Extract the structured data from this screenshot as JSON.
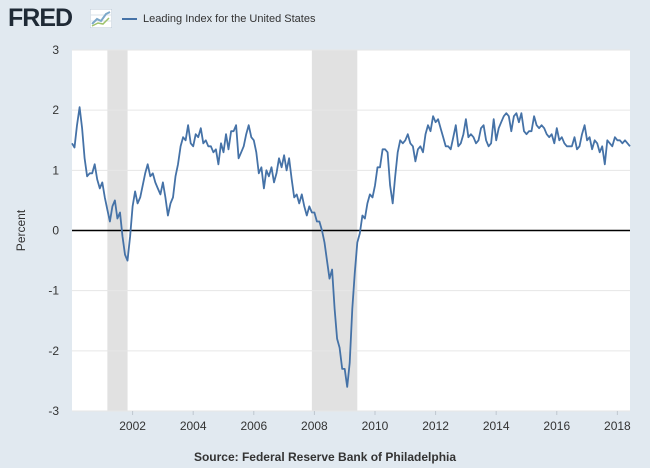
{
  "header": {
    "logo_text": "FRED",
    "logo_icon": "trend-graph-icon",
    "legend_color": "#4572a7"
  },
  "footer": {
    "source": "Source: Federal Reserve Bank of Philadelphia"
  },
  "chart_data": {
    "type": "line",
    "title": "",
    "xlabel": "",
    "ylabel": "Percent",
    "xlim": [
      "2000-01",
      "2018-06"
    ],
    "ylim": [
      -3,
      3
    ],
    "y_ticks": [
      "-3",
      "-2",
      "-1",
      "0",
      "1",
      "2",
      "3"
    ],
    "x_ticks": [
      "2002",
      "2004",
      "2006",
      "2008",
      "2010",
      "2012",
      "2014",
      "2016",
      "2018"
    ],
    "grid": true,
    "legend": "top-left",
    "zero_line": true,
    "recessions": [
      {
        "start": "2001-03",
        "end": "2001-11"
      },
      {
        "start": "2007-12",
        "end": "2009-06"
      }
    ],
    "series": [
      {
        "name": "Leading Index for the United States",
        "color": "#4572a7",
        "points": [
          [
            "2000-01",
            1.45
          ],
          [
            "2000-02",
            1.38
          ],
          [
            "2000-03",
            1.75
          ],
          [
            "2000-04",
            2.05
          ],
          [
            "2000-05",
            1.7
          ],
          [
            "2000-06",
            1.2
          ],
          [
            "2000-07",
            0.9
          ],
          [
            "2000-08",
            0.95
          ],
          [
            "2000-09",
            0.95
          ],
          [
            "2000-10",
            1.1
          ],
          [
            "2000-11",
            0.85
          ],
          [
            "2000-12",
            0.7
          ],
          [
            "2001-01",
            0.8
          ],
          [
            "2001-02",
            0.55
          ],
          [
            "2001-03",
            0.35
          ],
          [
            "2001-04",
            0.15
          ],
          [
            "2001-05",
            0.4
          ],
          [
            "2001-06",
            0.5
          ],
          [
            "2001-07",
            0.2
          ],
          [
            "2001-08",
            0.3
          ],
          [
            "2001-09",
            -0.1
          ],
          [
            "2001-10",
            -0.4
          ],
          [
            "2001-11",
            -0.5
          ],
          [
            "2001-12",
            -0.1
          ],
          [
            "2002-01",
            0.4
          ],
          [
            "2002-02",
            0.65
          ],
          [
            "2002-03",
            0.45
          ],
          [
            "2002-04",
            0.55
          ],
          [
            "2002-05",
            0.75
          ],
          [
            "2002-06",
            0.95
          ],
          [
            "2002-07",
            1.1
          ],
          [
            "2002-08",
            0.9
          ],
          [
            "2002-09",
            0.95
          ],
          [
            "2002-10",
            0.8
          ],
          [
            "2002-11",
            0.7
          ],
          [
            "2002-12",
            0.6
          ],
          [
            "2003-01",
            0.8
          ],
          [
            "2003-02",
            0.55
          ],
          [
            "2003-03",
            0.25
          ],
          [
            "2003-04",
            0.45
          ],
          [
            "2003-05",
            0.55
          ],
          [
            "2003-06",
            0.9
          ],
          [
            "2003-07",
            1.1
          ],
          [
            "2003-08",
            1.4
          ],
          [
            "2003-09",
            1.55
          ],
          [
            "2003-10",
            1.5
          ],
          [
            "2003-11",
            1.75
          ],
          [
            "2003-12",
            1.45
          ],
          [
            "2004-01",
            1.4
          ],
          [
            "2004-02",
            1.6
          ],
          [
            "2004-03",
            1.55
          ],
          [
            "2004-04",
            1.7
          ],
          [
            "2004-05",
            1.45
          ],
          [
            "2004-06",
            1.5
          ],
          [
            "2004-07",
            1.4
          ],
          [
            "2004-08",
            1.4
          ],
          [
            "2004-09",
            1.3
          ],
          [
            "2004-10",
            1.35
          ],
          [
            "2004-11",
            1.1
          ],
          [
            "2004-12",
            1.45
          ],
          [
            "2005-01",
            1.3
          ],
          [
            "2005-02",
            1.6
          ],
          [
            "2005-03",
            1.35
          ],
          [
            "2005-04",
            1.65
          ],
          [
            "2005-05",
            1.65
          ],
          [
            "2005-06",
            1.75
          ],
          [
            "2005-07",
            1.2
          ],
          [
            "2005-08",
            1.3
          ],
          [
            "2005-09",
            1.4
          ],
          [
            "2005-10",
            1.6
          ],
          [
            "2005-11",
            1.75
          ],
          [
            "2005-12",
            1.55
          ],
          [
            "2006-01",
            1.5
          ],
          [
            "2006-02",
            1.3
          ],
          [
            "2006-03",
            0.95
          ],
          [
            "2006-04",
            1.05
          ],
          [
            "2006-05",
            0.7
          ],
          [
            "2006-06",
            1.0
          ],
          [
            "2006-07",
            0.9
          ],
          [
            "2006-08",
            1.05
          ],
          [
            "2006-09",
            0.8
          ],
          [
            "2006-10",
            0.95
          ],
          [
            "2006-11",
            1.2
          ],
          [
            "2006-12",
            1.05
          ],
          [
            "2007-01",
            1.25
          ],
          [
            "2007-02",
            1.0
          ],
          [
            "2007-03",
            1.2
          ],
          [
            "2007-04",
            0.85
          ],
          [
            "2007-05",
            0.55
          ],
          [
            "2007-06",
            0.6
          ],
          [
            "2007-07",
            0.45
          ],
          [
            "2007-08",
            0.6
          ],
          [
            "2007-09",
            0.4
          ],
          [
            "2007-10",
            0.25
          ],
          [
            "2007-11",
            0.4
          ],
          [
            "2007-12",
            0.3
          ],
          [
            "2008-01",
            0.3
          ],
          [
            "2008-02",
            0.15
          ],
          [
            "2008-03",
            0.15
          ],
          [
            "2008-04",
            0.0
          ],
          [
            "2008-05",
            -0.2
          ],
          [
            "2008-06",
            -0.5
          ],
          [
            "2008-07",
            -0.8
          ],
          [
            "2008-08",
            -0.65
          ],
          [
            "2008-09",
            -1.3
          ],
          [
            "2008-10",
            -1.8
          ],
          [
            "2008-11",
            -1.95
          ],
          [
            "2008-12",
            -2.3
          ],
          [
            "2009-01",
            -2.3
          ],
          [
            "2009-02",
            -2.6
          ],
          [
            "2009-03",
            -2.2
          ],
          [
            "2009-04",
            -1.3
          ],
          [
            "2009-05",
            -0.7
          ],
          [
            "2009-06",
            -0.2
          ],
          [
            "2009-07",
            -0.05
          ],
          [
            "2009-08",
            0.25
          ],
          [
            "2009-09",
            0.2
          ],
          [
            "2009-10",
            0.45
          ],
          [
            "2009-11",
            0.6
          ],
          [
            "2009-12",
            0.55
          ],
          [
            "2010-01",
            0.75
          ],
          [
            "2010-02",
            1.05
          ],
          [
            "2010-03",
            1.05
          ],
          [
            "2010-04",
            1.35
          ],
          [
            "2010-05",
            1.35
          ],
          [
            "2010-06",
            1.3
          ],
          [
            "2010-07",
            0.75
          ],
          [
            "2010-08",
            0.45
          ],
          [
            "2010-09",
            0.9
          ],
          [
            "2010-10",
            1.3
          ],
          [
            "2010-11",
            1.5
          ],
          [
            "2010-12",
            1.45
          ],
          [
            "2011-01",
            1.5
          ],
          [
            "2011-02",
            1.6
          ],
          [
            "2011-03",
            1.45
          ],
          [
            "2011-04",
            1.4
          ],
          [
            "2011-05",
            1.15
          ],
          [
            "2011-06",
            1.35
          ],
          [
            "2011-07",
            1.4
          ],
          [
            "2011-08",
            1.3
          ],
          [
            "2011-09",
            1.6
          ],
          [
            "2011-10",
            1.75
          ],
          [
            "2011-11",
            1.65
          ],
          [
            "2011-12",
            1.9
          ],
          [
            "2012-01",
            1.8
          ],
          [
            "2012-02",
            1.85
          ],
          [
            "2012-03",
            1.7
          ],
          [
            "2012-04",
            1.55
          ],
          [
            "2012-05",
            1.4
          ],
          [
            "2012-06",
            1.4
          ],
          [
            "2012-07",
            1.35
          ],
          [
            "2012-08",
            1.55
          ],
          [
            "2012-09",
            1.75
          ],
          [
            "2012-10",
            1.4
          ],
          [
            "2012-11",
            1.45
          ],
          [
            "2012-12",
            1.6
          ],
          [
            "2013-01",
            1.85
          ],
          [
            "2013-02",
            1.55
          ],
          [
            "2013-03",
            1.6
          ],
          [
            "2013-04",
            1.55
          ],
          [
            "2013-05",
            1.45
          ],
          [
            "2013-06",
            1.5
          ],
          [
            "2013-07",
            1.7
          ],
          [
            "2013-08",
            1.75
          ],
          [
            "2013-09",
            1.5
          ],
          [
            "2013-10",
            1.4
          ],
          [
            "2013-11",
            1.45
          ],
          [
            "2013-12",
            1.85
          ],
          [
            "2014-01",
            1.5
          ],
          [
            "2014-02",
            1.7
          ],
          [
            "2014-03",
            1.8
          ],
          [
            "2014-04",
            1.9
          ],
          [
            "2014-05",
            1.95
          ],
          [
            "2014-06",
            1.9
          ],
          [
            "2014-07",
            1.65
          ],
          [
            "2014-08",
            1.9
          ],
          [
            "2014-09",
            1.95
          ],
          [
            "2014-10",
            1.8
          ],
          [
            "2014-11",
            1.95
          ],
          [
            "2014-12",
            1.65
          ],
          [
            "2015-01",
            1.6
          ],
          [
            "2015-02",
            1.65
          ],
          [
            "2015-03",
            1.65
          ],
          [
            "2015-04",
            1.9
          ],
          [
            "2015-05",
            1.75
          ],
          [
            "2015-06",
            1.7
          ],
          [
            "2015-07",
            1.75
          ],
          [
            "2015-08",
            1.7
          ],
          [
            "2015-09",
            1.6
          ],
          [
            "2015-10",
            1.55
          ],
          [
            "2015-11",
            1.6
          ],
          [
            "2015-12",
            1.45
          ],
          [
            "2016-01",
            1.7
          ],
          [
            "2016-02",
            1.5
          ],
          [
            "2016-03",
            1.55
          ],
          [
            "2016-04",
            1.45
          ],
          [
            "2016-05",
            1.4
          ],
          [
            "2016-06",
            1.4
          ],
          [
            "2016-07",
            1.4
          ],
          [
            "2016-08",
            1.55
          ],
          [
            "2016-09",
            1.35
          ],
          [
            "2016-10",
            1.4
          ],
          [
            "2016-11",
            1.6
          ],
          [
            "2016-12",
            1.75
          ],
          [
            "2017-01",
            1.5
          ],
          [
            "2017-02",
            1.55
          ],
          [
            "2017-03",
            1.35
          ],
          [
            "2017-04",
            1.5
          ],
          [
            "2017-05",
            1.45
          ],
          [
            "2017-06",
            1.3
          ],
          [
            "2017-07",
            1.4
          ],
          [
            "2017-08",
            1.1
          ],
          [
            "2017-09",
            1.5
          ],
          [
            "2017-10",
            1.45
          ],
          [
            "2017-11",
            1.4
          ],
          [
            "2017-12",
            1.55
          ],
          [
            "2018-01",
            1.5
          ],
          [
            "2018-02",
            1.5
          ],
          [
            "2018-03",
            1.45
          ],
          [
            "2018-04",
            1.5
          ],
          [
            "2018-05",
            1.45
          ],
          [
            "2018-06",
            1.4
          ]
        ]
      }
    ]
  }
}
